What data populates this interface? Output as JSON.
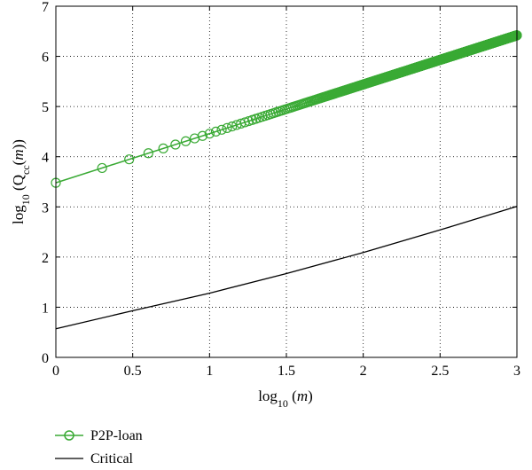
{
  "chart_data": {
    "type": "line",
    "title": "",
    "xlabel": {
      "prefix": "log",
      "sub": "10",
      "body": " (",
      "italic": "m",
      "suffix": ")"
    },
    "ylabel": {
      "prefix": "log",
      "sub": "10",
      "body": " (Q",
      "sub2": "cc",
      "mid": "(",
      "italic": "m",
      "suffix": "))"
    },
    "xlim": [
      0,
      3
    ],
    "ylim": [
      0,
      7
    ],
    "xticks": [
      "0",
      "0.5",
      "1",
      "1.5",
      "2",
      "2.5",
      "3"
    ],
    "yticks": [
      "0",
      "1",
      "2",
      "3",
      "4",
      "5",
      "6",
      "7"
    ],
    "grid": true,
    "grid_style": "dotted",
    "legend_position": "bottom-left, below plot",
    "series": [
      {
        "name": "P2P-loan",
        "color": "#3aaa35",
        "marker": "open-circle",
        "linear_fit": {
          "intercept": 3.48,
          "slope": 0.98
        },
        "x_is_log10_of_integers": {
          "m_start": 1,
          "m_end": 1000
        }
      },
      {
        "name": "Critical",
        "color": "#000000",
        "marker": "none",
        "x": [
          0,
          0.5,
          1,
          1.5,
          2,
          2.5,
          3
        ],
        "y": [
          0.57,
          0.93,
          1.28,
          1.67,
          2.09,
          2.54,
          3.01
        ]
      }
    ]
  },
  "colors": {
    "p2p": "#3aaa35",
    "critical": "#000000",
    "grid": "#000000"
  }
}
